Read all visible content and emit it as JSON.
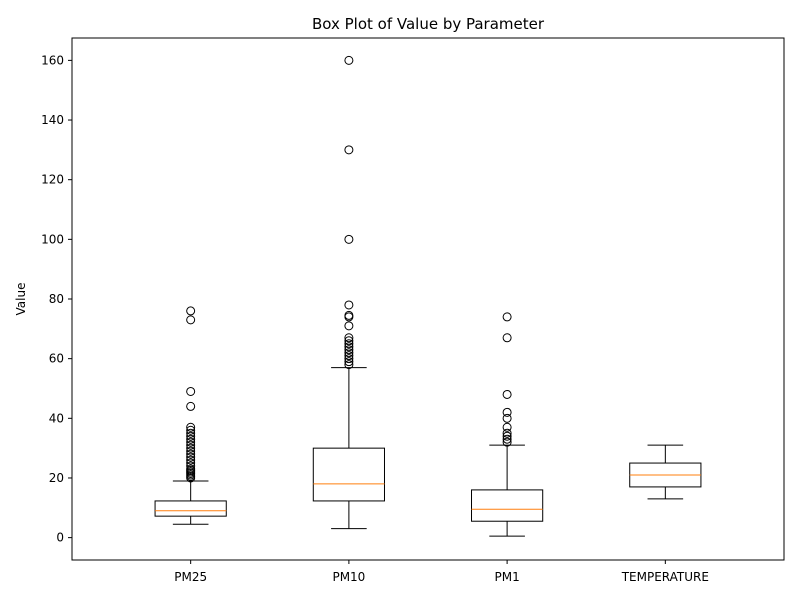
{
  "chart_data": {
    "type": "box",
    "title": "Box Plot of Value by Parameter",
    "xlabel": "",
    "ylabel": "Value",
    "ylim": [
      -7.5,
      167.5
    ],
    "yticks": [
      0,
      20,
      40,
      60,
      80,
      100,
      120,
      140,
      160
    ],
    "grid": false,
    "colors": {
      "box": "#000000",
      "median": "#ff7f0e"
    },
    "categories": [
      "PM25",
      "PM10",
      "PM1",
      "TEMPERATURE"
    ],
    "boxes": [
      {
        "category": "PM25",
        "whisker_low": 4.5,
        "q1": 7.2,
        "median": 9.0,
        "q3": 12.3,
        "whisker_high": 19.0,
        "outliers": [
          20,
          20.5,
          21,
          21.5,
          22,
          22.5,
          23,
          24,
          25,
          26,
          27,
          28,
          29,
          30,
          31,
          32,
          33,
          34,
          35,
          36,
          37,
          44,
          49,
          73,
          76
        ]
      },
      {
        "category": "PM10",
        "whisker_low": 3.0,
        "q1": 12.3,
        "median": 18.0,
        "q3": 30.0,
        "whisker_high": 57.0,
        "outliers": [
          58,
          59,
          60,
          61,
          62,
          63,
          64,
          65,
          66,
          67,
          71,
          74,
          74.5,
          78,
          100,
          130,
          160
        ]
      },
      {
        "category": "PM1",
        "whisker_low": 0.5,
        "q1": 5.5,
        "median": 9.5,
        "q3": 16.0,
        "whisker_high": 31.0,
        "outliers": [
          32,
          33,
          34,
          35,
          37,
          40,
          42,
          48,
          67,
          74
        ]
      },
      {
        "category": "TEMPERATURE",
        "whisker_low": 13.0,
        "q1": 17.0,
        "median": 21.0,
        "q3": 25.0,
        "whisker_high": 31.0,
        "outliers": []
      }
    ]
  }
}
